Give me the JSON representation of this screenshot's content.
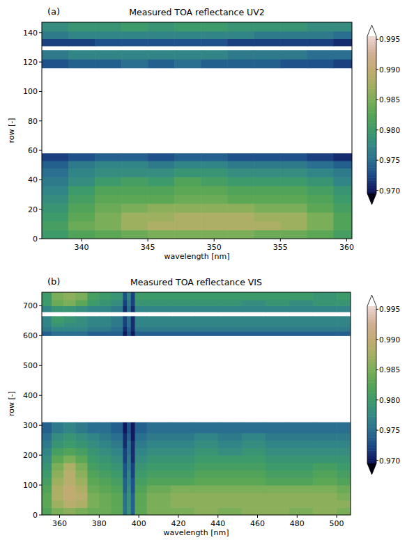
{
  "chart_data": [
    {
      "type": "heatmap",
      "label": "(a)",
      "title": "Measured TOA reflectance UV2",
      "x_label": "wavelength [nm]",
      "y_label": "row [-]",
      "xlim": [
        337,
        360.4
      ],
      "ylim": [
        0,
        147
      ],
      "xticks": [
        340,
        345,
        350,
        355,
        360
      ],
      "yticks": [
        0,
        20,
        40,
        60,
        80,
        100,
        120,
        140
      ],
      "x_edges": [
        337,
        339,
        341,
        343,
        345,
        347,
        349,
        351,
        353,
        355,
        357,
        359,
        361
      ],
      "y_edges": [
        0,
        6,
        12,
        18,
        24,
        30,
        36,
        42,
        48,
        53,
        58,
        116,
        122,
        128,
        131,
        136,
        141,
        147
      ],
      "cells": [
        [
          0.98,
          0.982,
          0.983,
          0.984,
          0.985,
          0.985,
          0.985,
          0.985,
          0.984,
          0.984,
          0.983,
          0.981
        ],
        [
          0.981,
          0.984,
          0.985,
          0.987,
          0.988,
          0.988,
          0.988,
          0.988,
          0.988,
          0.987,
          0.985,
          0.982
        ],
        [
          0.98,
          0.983,
          0.985,
          0.987,
          0.987,
          0.988,
          0.988,
          0.988,
          0.987,
          0.987,
          0.985,
          0.982
        ],
        [
          0.979,
          0.982,
          0.984,
          0.985,
          0.986,
          0.986,
          0.986,
          0.986,
          0.985,
          0.985,
          0.983,
          0.981
        ],
        [
          0.978,
          0.981,
          0.983,
          0.983,
          0.983,
          0.984,
          0.984,
          0.983,
          0.983,
          0.983,
          0.982,
          0.98
        ],
        [
          0.977,
          0.98,
          0.982,
          0.982,
          0.982,
          0.983,
          0.983,
          0.982,
          0.982,
          0.982,
          0.981,
          0.979
        ],
        [
          0.976,
          0.978,
          0.98,
          0.981,
          0.98,
          0.982,
          0.981,
          0.98,
          0.98,
          0.98,
          0.979,
          0.977
        ],
        [
          0.975,
          0.977,
          0.978,
          0.978,
          0.978,
          0.979,
          0.979,
          0.978,
          0.978,
          0.978,
          0.977,
          0.976
        ],
        [
          0.974,
          0.976,
          0.977,
          0.977,
          0.976,
          0.977,
          0.977,
          0.976,
          0.976,
          0.976,
          0.975,
          0.974
        ],
        [
          0.972,
          0.973,
          0.974,
          0.974,
          0.973,
          0.974,
          0.974,
          0.973,
          0.973,
          0.973,
          0.972,
          0.971
        ],
        [
          null,
          null,
          null,
          null,
          null,
          null,
          null,
          null,
          null,
          null,
          null,
          null
        ],
        [
          0.973,
          0.974,
          0.974,
          0.975,
          0.974,
          0.975,
          0.974,
          0.974,
          0.974,
          0.973,
          0.973,
          0.972
        ],
        [
          0.976,
          0.977,
          0.977,
          0.977,
          0.977,
          0.977,
          0.977,
          0.976,
          0.976,
          0.976,
          0.975,
          0.975
        ],
        [
          null,
          null,
          null,
          null,
          null,
          null,
          null,
          null,
          null,
          null,
          null,
          null
        ],
        [
          0.972,
          0.972,
          0.973,
          0.973,
          0.973,
          0.973,
          0.973,
          0.972,
          0.972,
          0.972,
          0.972,
          0.971
        ],
        [
          0.976,
          0.977,
          0.977,
          0.977,
          0.977,
          0.977,
          0.977,
          0.977,
          0.976,
          0.976,
          0.976,
          0.975
        ],
        [
          0.978,
          0.979,
          0.979,
          0.98,
          0.979,
          0.98,
          0.98,
          0.979,
          0.979,
          0.979,
          0.978,
          0.978
        ]
      ],
      "colorbar": {
        "range": [
          0.9695,
          0.9955
        ],
        "ticks": [
          {
            "value": 0.97,
            "label": "0.970"
          },
          0.975,
          {
            "value": 0.98,
            "label": "0.980"
          },
          0.985,
          {
            "value": 0.99,
            "label": "0.990"
          },
          0.995
        ]
      }
    },
    {
      "type": "heatmap",
      "label": "(b)",
      "title": "Measured TOA reflectance VIS",
      "x_label": "wavelength [nm]",
      "y_label": "row [-]",
      "xlim": [
        351,
        507
      ],
      "ylim": [
        0,
        745
      ],
      "xticks": [
        360,
        380,
        400,
        420,
        440,
        460,
        480,
        500
      ],
      "yticks": [
        0,
        100,
        200,
        300,
        400,
        500,
        600,
        700
      ],
      "x_edges": [
        351,
        356,
        362,
        368,
        374,
        380,
        386,
        392,
        394,
        396,
        398,
        404,
        416,
        428,
        440,
        452,
        464,
        476,
        488,
        500,
        507
      ],
      "y_edges": [
        0,
        25,
        50,
        75,
        100,
        125,
        150,
        175,
        200,
        225,
        250,
        275,
        310,
        600,
        615,
        630,
        645,
        665,
        680,
        700,
        720,
        745
      ],
      "cells": [
        [
          0.982,
          0.985,
          0.986,
          0.985,
          0.984,
          0.984,
          0.983,
          0.975,
          0.979,
          0.974,
          0.983,
          0.985,
          0.985,
          0.986,
          0.985,
          0.986,
          0.986,
          0.985,
          0.986,
          0.985
        ],
        [
          0.983,
          0.987,
          0.989,
          0.988,
          0.985,
          0.984,
          0.983,
          0.975,
          0.979,
          0.974,
          0.983,
          0.985,
          0.986,
          0.986,
          0.986,
          0.986,
          0.986,
          0.986,
          0.986,
          0.986
        ],
        [
          0.983,
          0.988,
          0.99,
          0.989,
          0.985,
          0.984,
          0.983,
          0.975,
          0.979,
          0.974,
          0.983,
          0.985,
          0.986,
          0.986,
          0.986,
          0.986,
          0.986,
          0.986,
          0.986,
          0.985
        ],
        [
          0.982,
          0.988,
          0.99,
          0.988,
          0.984,
          0.983,
          0.982,
          0.974,
          0.978,
          0.973,
          0.982,
          0.984,
          0.985,
          0.985,
          0.985,
          0.985,
          0.985,
          0.985,
          0.985,
          0.984
        ],
        [
          0.981,
          0.987,
          0.989,
          0.987,
          0.983,
          0.982,
          0.981,
          0.974,
          0.977,
          0.973,
          0.981,
          0.982,
          0.982,
          0.983,
          0.983,
          0.983,
          0.982,
          0.982,
          0.983,
          0.982
        ],
        [
          0.98,
          0.986,
          0.989,
          0.986,
          0.982,
          0.981,
          0.98,
          0.973,
          0.977,
          0.972,
          0.98,
          0.981,
          0.981,
          0.982,
          0.982,
          0.982,
          0.981,
          0.981,
          0.982,
          0.981
        ],
        [
          0.979,
          0.985,
          0.988,
          0.985,
          0.981,
          0.98,
          0.979,
          0.973,
          0.976,
          0.972,
          0.979,
          0.98,
          0.98,
          0.981,
          0.981,
          0.981,
          0.98,
          0.98,
          0.981,
          0.98
        ],
        [
          0.978,
          0.983,
          0.985,
          0.983,
          0.98,
          0.979,
          0.978,
          0.972,
          0.976,
          0.971,
          0.978,
          0.979,
          0.979,
          0.98,
          0.98,
          0.98,
          0.979,
          0.979,
          0.979,
          0.979
        ],
        [
          0.977,
          0.981,
          0.982,
          0.981,
          0.979,
          0.978,
          0.977,
          0.972,
          0.975,
          0.971,
          0.977,
          0.978,
          0.978,
          0.979,
          0.978,
          0.979,
          0.978,
          0.978,
          0.978,
          0.978
        ],
        [
          0.976,
          0.979,
          0.98,
          0.979,
          0.978,
          0.977,
          0.976,
          0.971,
          0.975,
          0.971,
          0.976,
          0.977,
          0.977,
          0.978,
          0.977,
          0.978,
          0.977,
          0.977,
          0.977,
          0.977
        ],
        [
          0.975,
          0.978,
          0.979,
          0.978,
          0.977,
          0.976,
          0.975,
          0.971,
          0.974,
          0.97,
          0.975,
          0.976,
          0.976,
          0.977,
          0.976,
          0.977,
          0.976,
          0.976,
          0.976,
          0.976
        ],
        [
          0.974,
          0.976,
          0.977,
          0.976,
          0.975,
          0.975,
          0.974,
          0.97,
          0.973,
          0.97,
          0.974,
          0.975,
          0.975,
          0.975,
          0.975,
          0.975,
          0.975,
          0.975,
          0.975,
          0.975
        ],
        [
          null,
          null,
          null,
          null,
          null,
          null,
          null,
          null,
          null,
          null,
          null,
          null,
          null,
          null,
          null,
          null,
          null,
          null,
          null,
          null
        ],
        [
          0.974,
          0.975,
          0.975,
          0.975,
          0.974,
          0.974,
          0.974,
          0.97,
          0.973,
          0.97,
          0.974,
          0.974,
          0.974,
          0.974,
          0.974,
          0.974,
          0.974,
          0.974,
          0.974,
          0.974
        ],
        [
          0.976,
          0.977,
          0.977,
          0.977,
          0.976,
          0.976,
          0.975,
          0.971,
          0.974,
          0.971,
          0.976,
          0.976,
          0.976,
          0.976,
          0.976,
          0.976,
          0.976,
          0.976,
          0.976,
          0.976
        ],
        [
          0.977,
          0.979,
          0.978,
          0.978,
          0.977,
          0.977,
          0.976,
          0.972,
          0.975,
          0.971,
          0.977,
          0.977,
          0.977,
          0.977,
          0.977,
          0.977,
          0.977,
          0.977,
          0.977,
          0.977
        ],
        [
          0.977,
          0.98,
          0.979,
          0.978,
          0.977,
          0.977,
          0.976,
          0.972,
          0.975,
          0.971,
          0.977,
          0.977,
          0.977,
          0.977,
          0.977,
          0.977,
          0.977,
          0.977,
          0.977,
          0.977
        ],
        [
          null,
          null,
          null,
          null,
          null,
          null,
          null,
          null,
          null,
          null,
          null,
          null,
          null,
          null,
          null,
          null,
          null,
          null,
          null,
          null
        ],
        [
          0.977,
          0.979,
          0.979,
          0.978,
          0.977,
          0.977,
          0.976,
          0.971,
          0.975,
          0.971,
          0.977,
          0.977,
          0.977,
          0.977,
          0.977,
          0.977,
          0.977,
          0.977,
          0.977,
          0.977
        ],
        [
          0.98,
          0.984,
          0.985,
          0.983,
          0.98,
          0.979,
          0.978,
          0.972,
          0.976,
          0.972,
          0.979,
          0.979,
          0.979,
          0.979,
          0.979,
          0.978,
          0.979,
          0.978,
          0.979,
          0.979
        ],
        [
          0.98,
          0.985,
          0.986,
          0.985,
          0.981,
          0.98,
          0.979,
          0.973,
          0.977,
          0.972,
          0.98,
          0.98,
          0.98,
          0.98,
          0.98,
          0.98,
          0.98,
          0.98,
          0.979,
          0.98
        ]
      ],
      "colorbar": {
        "range": [
          0.9695,
          0.9955
        ],
        "ticks": [
          {
            "value": 0.97,
            "label": "0.970"
          },
          0.975,
          {
            "value": 0.98,
            "label": "0.980"
          },
          0.985,
          {
            "value": 0.99,
            "label": "0.990"
          },
          0.995
        ]
      }
    }
  ]
}
